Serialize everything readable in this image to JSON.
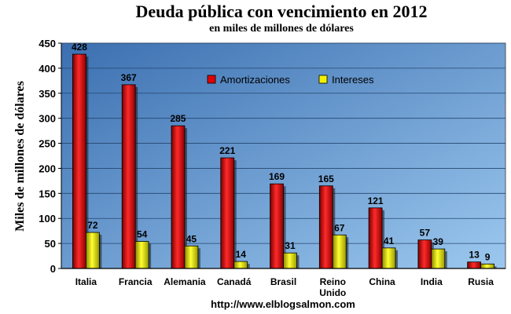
{
  "chart_data": {
    "type": "bar",
    "title": "Deuda pública con vencimiento en 2012",
    "subtitle": "en miles de millones de dólares",
    "ylabel": "Miles de millones de dólares",
    "xlabel": "",
    "footer": "http://www.elblogsalmon.com",
    "categories": [
      [
        "Italia"
      ],
      [
        "Francia"
      ],
      [
        "Alemania"
      ],
      [
        "Canadá"
      ],
      [
        "Brasil"
      ],
      [
        "Reino",
        "Unido"
      ],
      [
        "China"
      ],
      [
        "India"
      ],
      [
        "Rusia"
      ]
    ],
    "series": [
      {
        "name": "Amortizaciones",
        "color": "#e00000",
        "values": [
          428,
          367,
          285,
          221,
          169,
          165,
          121,
          57,
          13
        ]
      },
      {
        "name": "Intereses",
        "color": "#f2f200",
        "values": [
          72,
          54,
          45,
          14,
          31,
          67,
          41,
          39,
          9
        ]
      }
    ],
    "ylim": [
      0,
      450
    ],
    "yticks": [
      0,
      50,
      100,
      150,
      200,
      250,
      300,
      350,
      400,
      450
    ],
    "grid": true,
    "legend": "top-center",
    "background_gradient": [
      "#3b6fb0",
      "#9cc8ef"
    ]
  }
}
